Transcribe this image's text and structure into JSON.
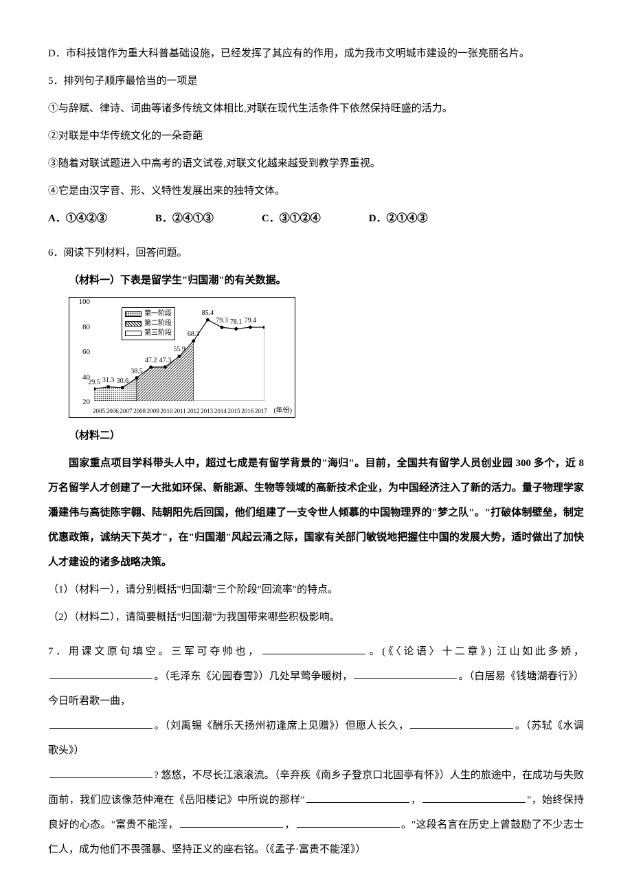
{
  "line_d": "D．市科技馆作为重大科普基础设施，已经发挥了其应有的作用，成为我市文明城市建设的一张亮丽名片。",
  "q5": {
    "stem": "5．排列句子顺序最恰当的一项是",
    "s1": "①与辞赋、律诗、词曲等诸多传统文体相比,对联在现代生活条件下依然保持旺盛的活力。",
    "s2": "②对联是中华传统文化的一朵奇葩",
    "s3": "③随着对联试题进入中高考的语文试卷,对联文化越来越受到教学界重视。",
    "s4": "④它是由汉字音、形、义特性发展出来的独特文体。",
    "optA": "A．①④②③",
    "optB": "B．②④①③",
    "optC": "C．③①②④",
    "optD": "D．②①④③"
  },
  "q6": {
    "stem": "6．阅读下列材料，回答问题。",
    "m1_title": "（材料一）下表是留学生\"归国潮\"的有关数据。",
    "m2_title": "（材料二）",
    "m2_body": "国家重点项目学科带头人中，超过七成是有留学背景的\"海归\"。目前，全国共有留学人员创业园 300 多个，近 8 万名留学人才创建了一大批如环保、新能源、生物等领域的高新技术企业，为中国经济注入了新的活力。量子物理学家潘建伟与高徒陈宇翱、陆朝阳先后回国，他们组建了一支令世人倾慕的中国物理界的\"梦之队\"。\"打破体制壁垒，制定优惠政策，诚纳天下英才\"，在\"归国潮\"风起云涌之际，国家有关部门敏锐地把握住中国的发展大势，适时做出了加快人才建设的诸多战略决策。",
    "sub1": "（1）（材料一），请分别概括\"归国潮\"三个阶段\"回流率\"的特点。",
    "sub2": "（2）（材料二），请简要概括\"归国潮\"为我国带来哪些积极影响。"
  },
  "chart": {
    "y_labels": [
      "100",
      "80",
      "60",
      "40",
      "20"
    ],
    "x_labels": [
      "2005",
      "2006",
      "2007",
      "2008",
      "2009",
      "2010",
      "2011",
      "2012",
      "2013",
      "2014",
      "2015",
      "2016",
      "2017"
    ],
    "x_unit": "(年份)",
    "legend": [
      "第一阶段",
      "第二阶段",
      "第三阶段"
    ],
    "points": [
      {
        "year": "2005",
        "v": 29.5
      },
      {
        "year": "2006",
        "v": 31.3
      },
      {
        "year": "2007",
        "v": 30.6
      },
      {
        "year": "2008",
        "v": 38.5
      },
      {
        "year": "2009",
        "v": 47.2
      },
      {
        "year": "2010",
        "v": 47.3
      },
      {
        "year": "2011",
        "v": 55.9
      },
      {
        "year": "2012",
        "v": 68.3
      },
      {
        "year": "2013",
        "v": 85.4
      },
      {
        "year": "2014",
        "v": 79.3
      },
      {
        "year": "2015",
        "v": 78.1
      },
      {
        "year": "2016",
        "v": 79.4
      },
      {
        "year": "2017",
        "v": 79.4
      }
    ],
    "y_min": 20,
    "y_max": 100
  },
  "q7": {
    "stem_a": "7．用课文原句填空。三军可夺帅也，",
    "cite1": "。(《〈论语〉十二章》) 江山如此多娇，",
    "cite2_pre": "。（毛泽东《沁园春雪》）几处早莺争暖树，",
    "cite3": "。（白居易《钱塘湖春行》）今日听君歌一曲，",
    "cite4": "。（刘禹锡《酬乐天扬州初逢席上见赠》）但愿人长久，",
    "cite5": "。（苏轼《水调歌头》）",
    "part6": "? 悠悠，不尽长江滚滚流。（辛弃疾《南乡子登京口北固亭有怀》）人生的旅途中，在成功与失败面前，我们应该像范仲淹在《岳阳楼记》中所说的那样\"",
    "comma6": "，",
    "after6": "\"，始终保持良好的心态。\"富贵不能淫，",
    "comma7": "，",
    "after7": "。\"这段名言在历史上曾鼓励了不少志士仁人，成为他们不畏强暴、坚持正义的座右铭。（《孟子·富贵不能淫》）"
  }
}
